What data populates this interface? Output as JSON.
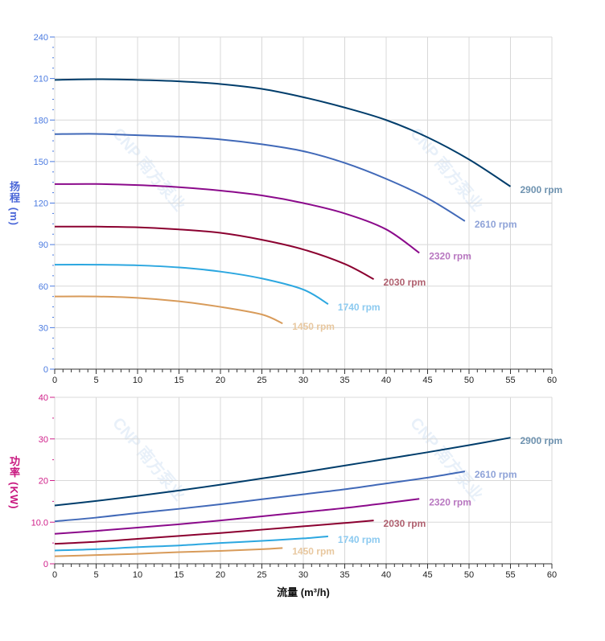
{
  "watermark": "CNP 南方泵业",
  "chart_data": [
    {
      "type": "line",
      "ylabel": "扬程 (m)",
      "ylabel_color": "#4a66d8",
      "tick_color": "#4a7ae0",
      "xlim": [
        0,
        60
      ],
      "ylim": [
        0,
        240
      ],
      "xticks": [
        0,
        5,
        10,
        15,
        20,
        25,
        30,
        35,
        40,
        45,
        50,
        55,
        60
      ],
      "yticks": [
        0,
        30,
        60,
        90,
        120,
        150,
        180,
        210,
        240
      ],
      "grid": true,
      "series": [
        {
          "name": "2900 rpm",
          "color": "#003d6b",
          "label_color": "#6f93b0",
          "x": [
            0,
            5,
            10,
            15,
            20,
            25,
            30,
            35,
            40,
            45,
            50,
            55
          ],
          "y": [
            209,
            209.5,
            209,
            208,
            206,
            202.5,
            196.5,
            189,
            180,
            167.5,
            151.5,
            132
          ]
        },
        {
          "name": "2610 rpm",
          "color": "#4169b8",
          "label_color": "#8fa3d8",
          "x": [
            0,
            5,
            10,
            15,
            20,
            25,
            30,
            35,
            40,
            45,
            49.5
          ],
          "y": [
            169.8,
            170,
            169,
            168,
            166,
            162.5,
            157.5,
            149,
            137.5,
            123.5,
            107
          ]
        },
        {
          "name": "2320 rpm",
          "color": "#8b0a8b",
          "label_color": "#b877c0",
          "x": [
            0,
            5,
            10,
            15,
            20,
            25,
            30,
            35,
            40,
            44
          ],
          "y": [
            133.7,
            133.8,
            133,
            131.5,
            129,
            125.5,
            120,
            112.5,
            101,
            84
          ]
        },
        {
          "name": "2030 rpm",
          "color": "#8b0030",
          "label_color": "#b0606f",
          "x": [
            0,
            5,
            10,
            15,
            20,
            25,
            30,
            35,
            38.5
          ],
          "y": [
            103,
            103,
            102.5,
            101,
            98.5,
            93.5,
            86.5,
            76,
            65
          ]
        },
        {
          "name": "1740 rpm",
          "color": "#2ca7e0",
          "label_color": "#8ccaf0",
          "x": [
            0,
            5,
            10,
            15,
            20,
            25,
            30,
            33
          ],
          "y": [
            75.5,
            75.5,
            75,
            73.5,
            70.5,
            65.5,
            57.5,
            47
          ]
        },
        {
          "name": "1450 rpm",
          "color": "#d89b5a",
          "label_color": "#e8c8a0",
          "x": [
            0,
            5,
            10,
            15,
            20,
            25,
            27.5
          ],
          "y": [
            52.5,
            52.5,
            51.5,
            49,
            45,
            39.5,
            33
          ]
        }
      ]
    },
    {
      "type": "line",
      "ylabel": "功率 (KW)",
      "ylabel_color": "#c8157e",
      "tick_color": "#d0208a",
      "xlabel": "流量 (m³/h)",
      "xlim": [
        0,
        60
      ],
      "ylim": [
        0,
        40
      ],
      "xticks": [
        0,
        5,
        10,
        15,
        20,
        25,
        30,
        35,
        40,
        45,
        50,
        55,
        60
      ],
      "yticks": [
        "0",
        "10.0",
        "20",
        "30",
        "40"
      ],
      "grid": true,
      "series": [
        {
          "name": "2900 rpm",
          "color": "#003d6b",
          "label_color": "#6f93b0",
          "x": [
            0,
            5,
            10,
            15,
            20,
            25,
            30,
            35,
            40,
            45,
            50,
            55
          ],
          "y": [
            14,
            15.1,
            16.3,
            17.6,
            19,
            20.5,
            22,
            23.6,
            25.2,
            26.8,
            28.5,
            30.3
          ]
        },
        {
          "name": "2610 rpm",
          "color": "#4169b8",
          "label_color": "#8fa3d8",
          "x": [
            0,
            5,
            10,
            15,
            20,
            25,
            30,
            35,
            40,
            45,
            49.5
          ],
          "y": [
            10.2,
            11.1,
            12.2,
            13.2,
            14.3,
            15.5,
            16.7,
            17.9,
            19.3,
            20.7,
            22.2
          ]
        },
        {
          "name": "2320 rpm",
          "color": "#8b0a8b",
          "label_color": "#b877c0",
          "x": [
            0,
            5,
            10,
            15,
            20,
            25,
            30,
            35,
            40,
            44
          ],
          "y": [
            7.2,
            7.9,
            8.7,
            9.5,
            10.4,
            11.4,
            12.4,
            13.4,
            14.6,
            15.6
          ]
        },
        {
          "name": "2030 rpm",
          "color": "#8b0030",
          "label_color": "#b0606f",
          "x": [
            0,
            5,
            10,
            15,
            20,
            25,
            30,
            35,
            38.5
          ],
          "y": [
            4.8,
            5.3,
            6,
            6.7,
            7.4,
            8.2,
            9,
            9.8,
            10.4
          ]
        },
        {
          "name": "1740 rpm",
          "color": "#2ca7e0",
          "label_color": "#8ccaf0",
          "x": [
            0,
            5,
            10,
            15,
            20,
            25,
            30,
            33
          ],
          "y": [
            3.2,
            3.5,
            4,
            4.4,
            5,
            5.5,
            6.1,
            6.6
          ]
        },
        {
          "name": "1450 rpm",
          "color": "#d89b5a",
          "label_color": "#e8c8a0",
          "x": [
            0,
            5,
            10,
            15,
            20,
            25,
            27.5
          ],
          "y": [
            1.8,
            2.1,
            2.4,
            2.8,
            3.1,
            3.5,
            3.8
          ]
        }
      ]
    }
  ]
}
